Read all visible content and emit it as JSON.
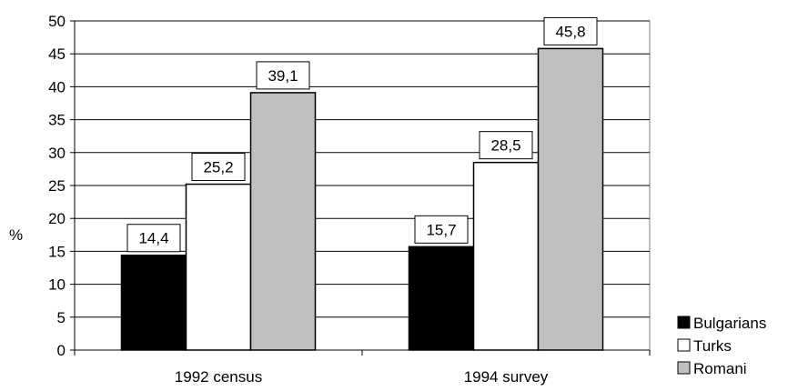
{
  "chart_data": {
    "type": "bar",
    "title": "",
    "xlabel": "",
    "ylabel": "%",
    "ylim": [
      0,
      50
    ],
    "yticks": [
      "0",
      "5",
      "10",
      "15",
      "20",
      "25",
      "30",
      "35",
      "40",
      "45",
      "50"
    ],
    "categories": [
      "1992 census",
      "1994 survey"
    ],
    "series": [
      {
        "name": "Bulgarians",
        "values": [
          14.4,
          15.7
        ],
        "labels": [
          "14,4",
          "15,7"
        ],
        "color": "#000000"
      },
      {
        "name": "Turks",
        "values": [
          25.2,
          28.5
        ],
        "labels": [
          "25,2",
          "28,5"
        ],
        "color": "#ffffff"
      },
      {
        "name": "Romani",
        "values": [
          39.1,
          45.8
        ],
        "labels": [
          "39,1",
          "45,8"
        ],
        "color": "#c0c0c0"
      }
    ],
    "grid": true,
    "legend_position": "bottom-right"
  }
}
